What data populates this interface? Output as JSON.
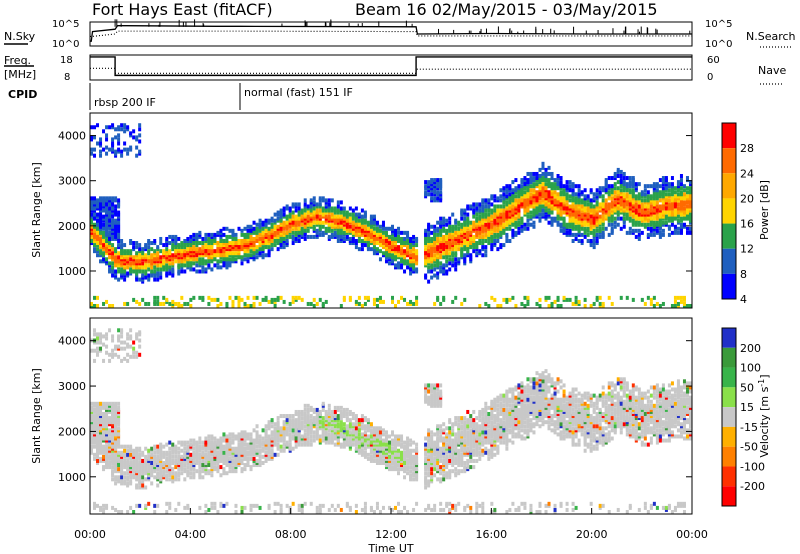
{
  "header": {
    "station": "Fort Hays East (fitACF)",
    "beam_date": "Beam 16 02/May/2015 - 03/May/2015"
  },
  "time_axis": {
    "label": "Time UT",
    "ticks": [
      "00:00",
      "04:00",
      "08:00",
      "12:00",
      "16:00",
      "20:00",
      "00:00"
    ]
  },
  "chart_data": [
    {
      "type": "line",
      "name": "noise",
      "left_label": "N.Sky",
      "right_label": "N.Search",
      "left_ticks": [
        "10^5",
        "10^0"
      ],
      "right_ticks": [
        "10^5",
        "10^0"
      ],
      "x_range_hours": [
        0,
        24
      ],
      "series": [
        {
          "name": "N.Sky",
          "style": "solid",
          "x": [
            0,
            0.05,
            0.1,
            1,
            1.1,
            5,
            6,
            13,
            13.05,
            16,
            20,
            24
          ],
          "y": [
            0.2,
            0.2,
            0.6,
            0.7,
            0.85,
            0.82,
            0.82,
            0.8,
            0.5,
            0.52,
            0.5,
            0.5
          ]
        },
        {
          "name": "N.Search",
          "style": "dotted",
          "x": [
            0,
            0.1,
            1,
            1.1,
            6,
            13,
            13.05,
            24
          ],
          "y": [
            0.4,
            0.4,
            0.5,
            0.62,
            0.62,
            0.6,
            0.42,
            0.42
          ]
        }
      ]
    },
    {
      "type": "line",
      "name": "frequency",
      "left_label": "Freq. [MHz]",
      "right_label": "Nave",
      "left_ticks": [
        "18",
        "8"
      ],
      "right_ticks": [
        "60",
        "0"
      ],
      "x_range_hours": [
        0,
        24
      ],
      "series": [
        {
          "name": "Freq. [MHz]",
          "style": "solid",
          "x": [
            0,
            1,
            1,
            13,
            13,
            24
          ],
          "y": [
            18,
            18,
            8.4,
            8.4,
            18,
            18
          ]
        },
        {
          "name": "Nave",
          "style": "dotted",
          "x": [
            0,
            1,
            1,
            13,
            13,
            24
          ],
          "y": [
            28,
            28,
            16,
            16,
            26,
            26
          ]
        }
      ]
    },
    {
      "type": "table",
      "name": "cpid",
      "label": "CPID",
      "segments": [
        {
          "text": "rbsp 200 IF",
          "start": 0,
          "end": 6
        },
        {
          "text": "normal (fast) 151 IF",
          "start": 6,
          "end": 24
        }
      ]
    },
    {
      "type": "heatmap",
      "name": "power",
      "title": "",
      "xlabel": "",
      "ylabel": "Slant Range [km]",
      "colorbar_label": "Power [dB]",
      "colorbar_ticks": [
        "28",
        "24",
        "20",
        "16",
        "12",
        "8",
        "4"
      ],
      "colorbar_colors": [
        "#ff0000",
        "#ff6a00",
        "#ffa800",
        "#ffd400",
        "#2aa24a",
        "#1f5fbf",
        "#0000ff"
      ],
      "y_ticks": [
        "4000",
        "3000",
        "2000",
        "1000"
      ],
      "ylim": [
        180,
        4500
      ],
      "x_range_hours": [
        0,
        24
      ],
      "band": {
        "x": [
          0,
          1,
          2,
          4,
          6,
          7,
          8,
          9,
          10,
          11,
          12,
          13,
          16,
          18,
          19,
          20,
          21,
          22,
          23,
          24
        ],
        "y": [
          1850,
          1200,
          1150,
          1350,
          1500,
          1700,
          2000,
          2150,
          2050,
          1800,
          1500,
          1250,
          2000,
          2700,
          2300,
          2100,
          2550,
          2250,
          2400,
          2450
        ]
      }
    },
    {
      "type": "heatmap",
      "name": "velocity",
      "title": "",
      "xlabel": "Time UT",
      "ylabel": "Slant Range [km]",
      "colorbar_label": "Velocity [m s^-1]",
      "colorbar_ticks": [
        "200",
        "100",
        "50",
        "15",
        "-15",
        "-50",
        "-100",
        "-200"
      ],
      "colorbar_colors": [
        "#2030c8",
        "#3a9a3a",
        "#38b44a",
        "#8ae04a",
        "#c8c8c8",
        "#ffb000",
        "#ff8000",
        "#ff3000",
        "#ff0000"
      ],
      "y_ticks": [
        "4000",
        "3000",
        "2000",
        "1000"
      ],
      "ylim": [
        180,
        4500
      ],
      "x_range_hours": [
        0,
        24
      ],
      "band": {
        "x": [
          0,
          1,
          2,
          4,
          6,
          7,
          8,
          9,
          10,
          11,
          12,
          13,
          16,
          18,
          19,
          20,
          21,
          22,
          23,
          24
        ],
        "y": [
          1850,
          1200,
          1150,
          1350,
          1500,
          1700,
          2000,
          2150,
          2050,
          1800,
          1500,
          1250,
          2000,
          2700,
          2300,
          2100,
          2550,
          2250,
          2400,
          2450
        ]
      }
    }
  ]
}
